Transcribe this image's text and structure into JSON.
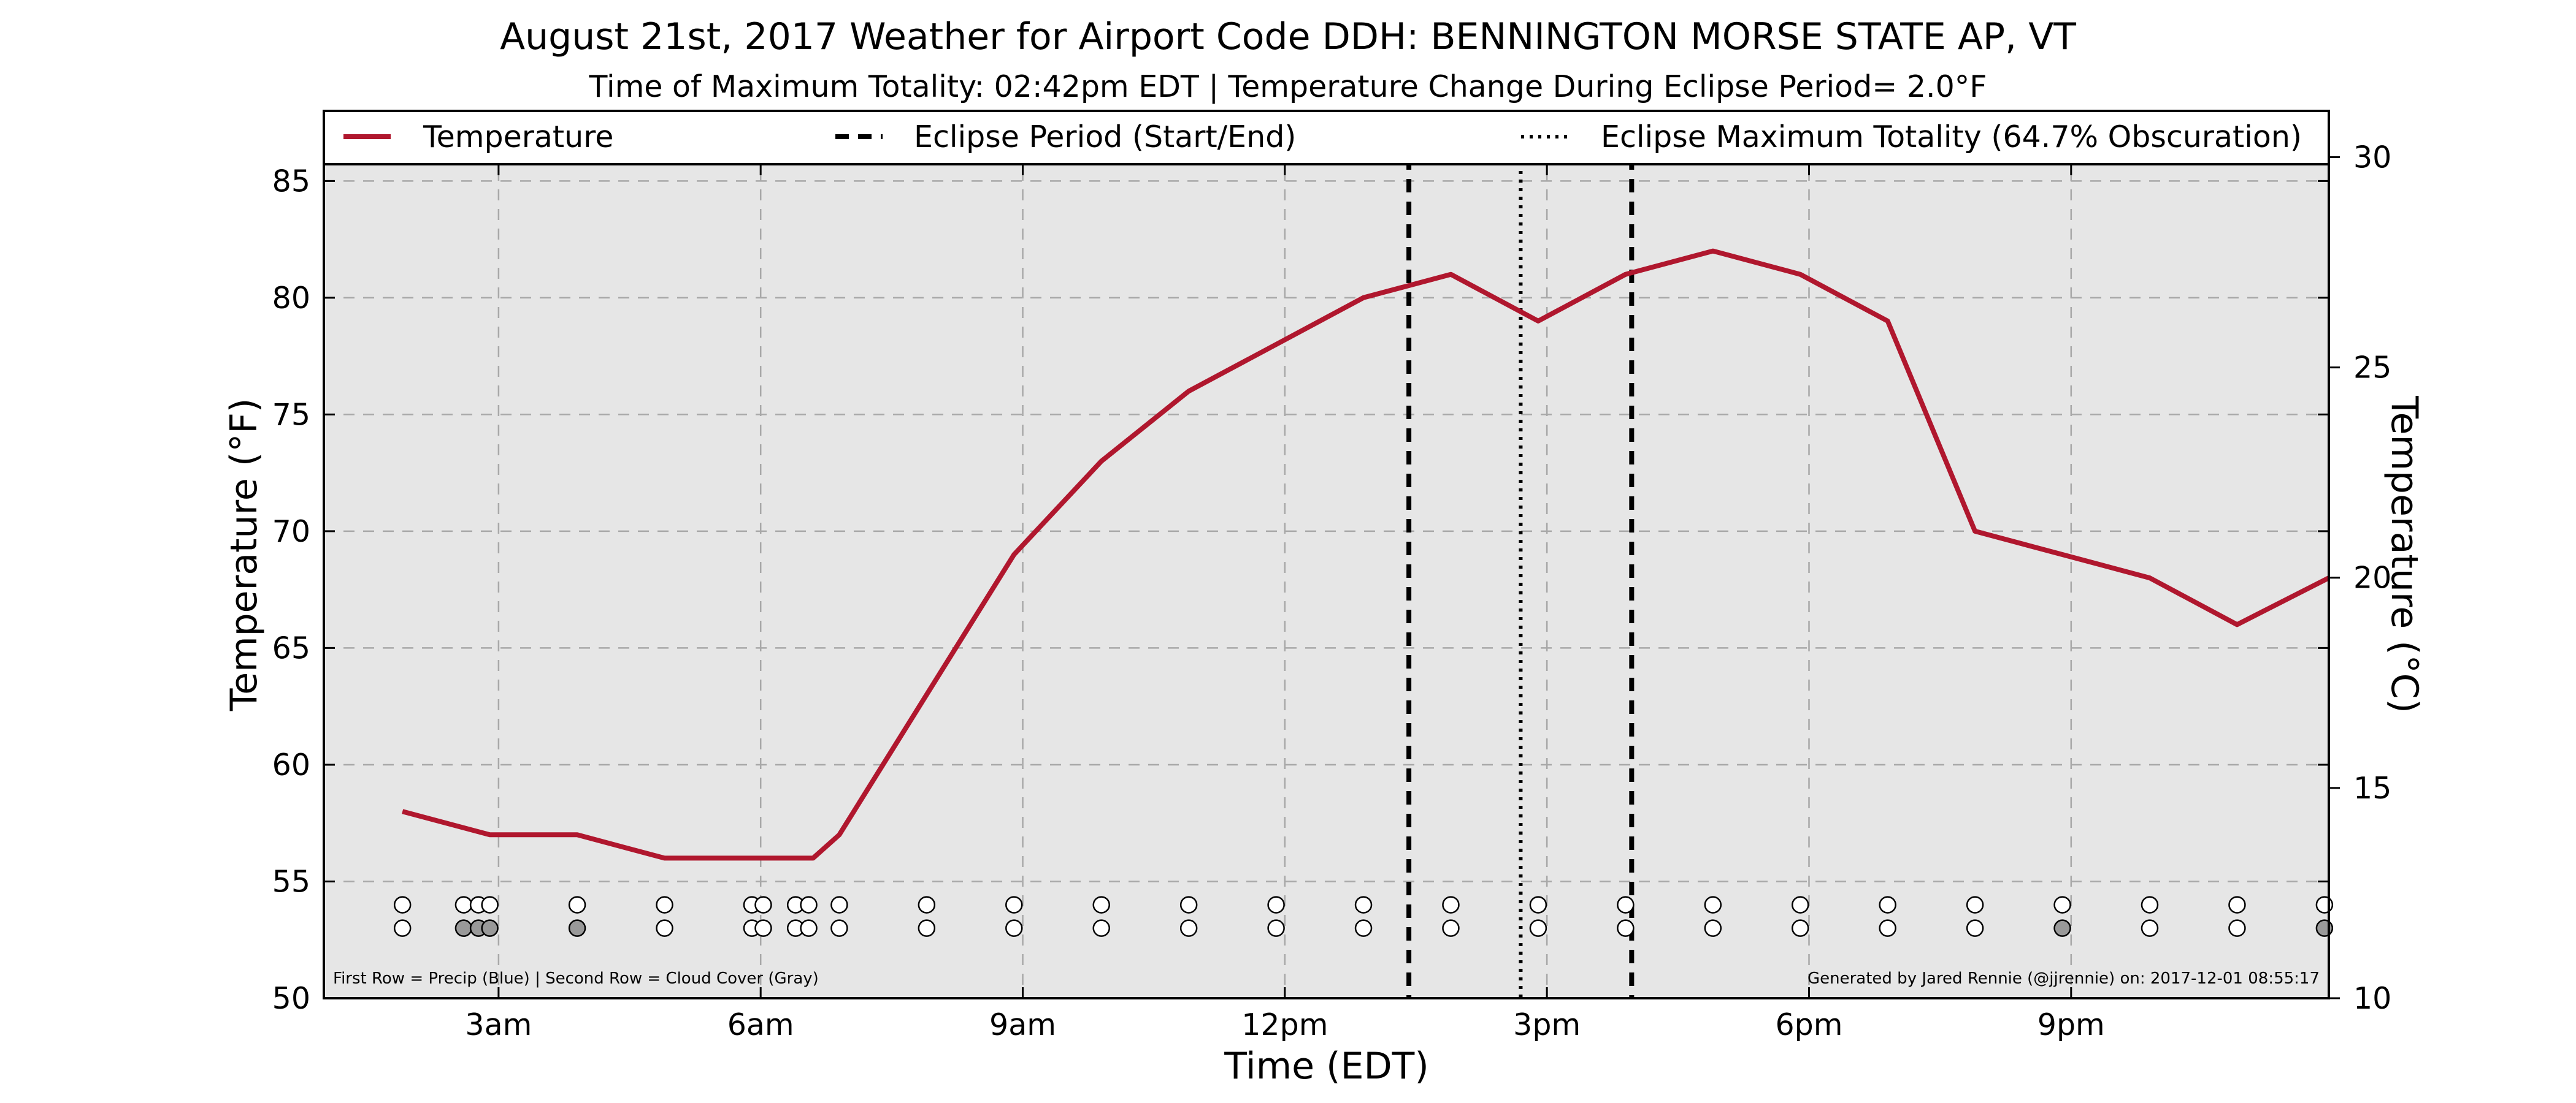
{
  "chart_data": {
    "type": "line",
    "title": "August 21st, 2017 Weather for Airport Code DDH: BENNINGTON MORSE STATE AP, VT",
    "subtitle": "Time of Maximum Totality: 02:42pm EDT | Temperature Change During Eclipse Period= 2.0°F",
    "xlabel": "Time (EDT)",
    "ylabel": "Temperature (°F)",
    "ylabel_right": "Temperature (°C)",
    "xlim": [
      1.0,
      23.95
    ],
    "ylim": [
      50,
      88
    ],
    "ylim_right": [
      10,
      31.1
    ],
    "x_ticks": [
      3,
      6,
      9,
      12,
      15,
      18,
      21
    ],
    "x_tick_labels": [
      "3am",
      "6am",
      "9am",
      "12pm",
      "3pm",
      "6pm",
      "9pm"
    ],
    "y_ticks": [
      50,
      55,
      60,
      65,
      70,
      75,
      80,
      85
    ],
    "y_tick_labels": [
      "50",
      "55",
      "60",
      "65",
      "70",
      "75",
      "80",
      "85"
    ],
    "y_ticks_right": [
      10,
      15,
      20,
      25,
      30
    ],
    "y_tick_labels_right": [
      "10",
      "15",
      "20",
      "25",
      "30"
    ],
    "grid": true,
    "legend_position": "top",
    "legend": [
      {
        "label": "Temperature",
        "style": "solid",
        "color": "#b0172e"
      },
      {
        "label": "Eclipse Period (Start/End)",
        "style": "dashed",
        "color": "#000000"
      },
      {
        "label": "Eclipse Maximum Totality (64.7% Obscuration)",
        "style": "dotted",
        "color": "#000000"
      }
    ],
    "series": [
      {
        "name": "Temperature",
        "color": "#b0172e",
        "x": [
          1.9,
          2.9,
          3.9,
          4.9,
          5.9,
          6.6,
          6.9,
          7.9,
          8.9,
          9.9,
          10.9,
          11.9,
          12.9,
          13.9,
          14.9,
          15.9,
          16.9,
          17.9,
          18.9,
          19.9,
          20.9,
          21.9,
          22.9,
          23.95
        ],
        "values": [
          58,
          57,
          57,
          56,
          56,
          56,
          57,
          63,
          69,
          73,
          76,
          78,
          80,
          81,
          79,
          81,
          82,
          81,
          79,
          70,
          69,
          68,
          66,
          68
        ]
      }
    ],
    "eclipse_start_x": 13.42,
    "eclipse_end_x": 15.97,
    "eclipse_max_x": 14.7,
    "obs_times": [
      1.9,
      2.6,
      2.77,
      2.9,
      3.9,
      4.9,
      5.9,
      6.03,
      6.4,
      6.55,
      6.9,
      7.9,
      8.9,
      9.9,
      10.9,
      11.9,
      12.9,
      13.9,
      14.9,
      15.9,
      16.9,
      17.9,
      18.9,
      19.9,
      20.9,
      21.9,
      22.9,
      23.9
    ],
    "precip_row_y": 54,
    "cloud_row_y": 53,
    "precip_filled": [
      false,
      false,
      false,
      false,
      false,
      false,
      false,
      false,
      false,
      false,
      false,
      false,
      false,
      false,
      false,
      false,
      false,
      false,
      false,
      false,
      false,
      false,
      false,
      false,
      false,
      false,
      false,
      false
    ],
    "cloud_filled": [
      false,
      true,
      true,
      true,
      true,
      false,
      false,
      false,
      false,
      false,
      false,
      false,
      false,
      false,
      false,
      false,
      false,
      false,
      false,
      false,
      false,
      false,
      false,
      false,
      true,
      false,
      false,
      true
    ],
    "marker_colors": {
      "empty": "#ffffff",
      "cloud": "#999999",
      "precip": "#3b6fd6"
    },
    "plot_background": "#e6e6e6",
    "footnote_left": "First Row = Precip (Blue) | Second Row = Cloud Cover (Gray)",
    "footnote_right": "Generated by Jared Rennie (@jjrennie) on: 2017-12-01 08:55:17"
  }
}
